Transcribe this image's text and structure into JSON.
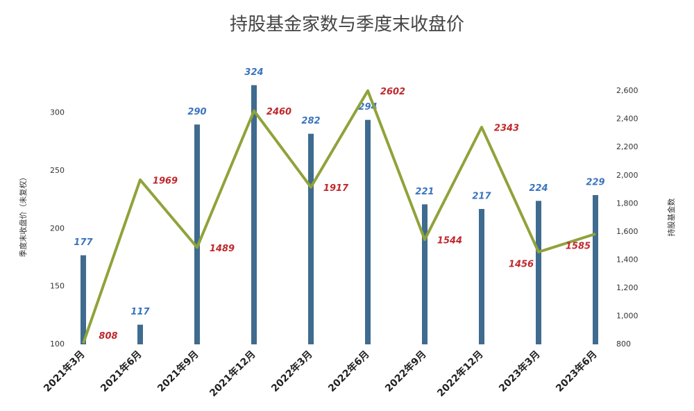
{
  "chart_data": {
    "type": "bar-line",
    "title": "持股基金家数与季度末收盘价",
    "y_label": "季度末收盘价（未复权）",
    "y2_label": "持股基金数",
    "categories": [
      "2021年3月",
      "2021年6月",
      "2021年9月",
      "2021年12月",
      "2022年3月",
      "2022年6月",
      "2022年9月",
      "2022年12月",
      "2023年3月",
      "2023年6月"
    ],
    "series": [
      {
        "type": "bar",
        "color": "#3f6b8f",
        "label_color": "#3a74c0",
        "values": [
          177,
          117,
          290,
          324,
          282,
          294,
          221,
          217,
          224,
          229
        ]
      },
      {
        "type": "line",
        "axis": "y2",
        "color": "#8fa33a",
        "label_color": "#c0282d",
        "values": [
          808,
          1969,
          1489,
          2460,
          1917,
          2602,
          1544,
          2343,
          1456,
          1585
        ]
      }
    ],
    "ylim": [
      100,
      325
    ],
    "yticks": [
      100,
      150,
      200,
      250,
      300
    ],
    "y2lim": [
      800,
      2650
    ],
    "y2ticks": [
      {
        "value": 800,
        "label": "800"
      },
      {
        "value": 1000,
        "label": "1,000"
      },
      {
        "value": 1200,
        "label": "1,200"
      },
      {
        "value": 1400,
        "label": "1,400"
      },
      {
        "value": 1600,
        "label": "1,600"
      },
      {
        "value": 1800,
        "label": "1,800"
      },
      {
        "value": 2000,
        "label": "2,000"
      },
      {
        "value": 2200,
        "label": "2,200"
      },
      {
        "value": 2400,
        "label": "2,400"
      },
      {
        "value": 2600,
        "label": "2,600"
      }
    ]
  }
}
